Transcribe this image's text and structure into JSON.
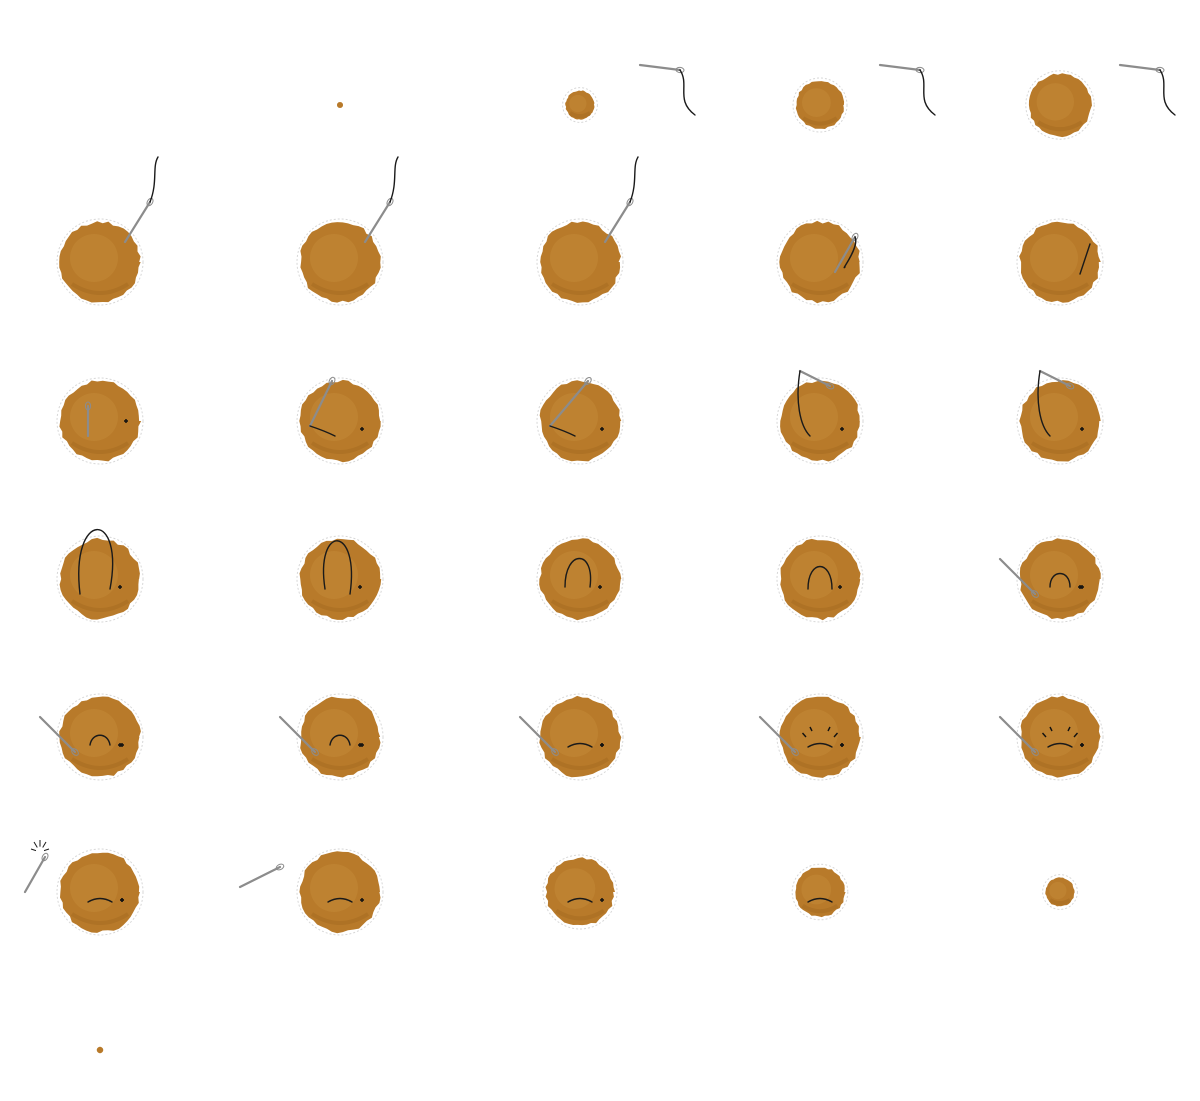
{
  "sprite_sheet": {
    "grid": {
      "columns": 5,
      "rows": 7
    },
    "frame_count": 31,
    "colors": {
      "background": "#ffffff",
      "cookie_fill": "#b87a2a",
      "cookie_light": "#c9913f",
      "cookie_dark": "#a3691f",
      "outline": "#d7d7d7",
      "needle": "#8c8c8c",
      "thread": "#1a1a1a",
      "stitch": "#111111"
    },
    "frames": [
      {
        "state": "empty"
      },
      {
        "state": "dot",
        "size_level": 0.06
      },
      {
        "state": "growing",
        "size_level": 0.36,
        "needle": "floating"
      },
      {
        "state": "growing",
        "size_level": 0.6,
        "needle": "floating"
      },
      {
        "state": "growing",
        "size_level": 0.78,
        "needle": "floating"
      },
      {
        "state": "full",
        "needle": "descending"
      },
      {
        "state": "full",
        "needle": "descending"
      },
      {
        "state": "full",
        "needle": "descending"
      },
      {
        "state": "full",
        "needle": "entering"
      },
      {
        "state": "full",
        "needle": "inside"
      },
      {
        "state": "full",
        "needle": "piercing"
      },
      {
        "state": "full",
        "needle": "pulling"
      },
      {
        "state": "full",
        "needle": "pulling"
      },
      {
        "state": "full",
        "needle": "looping"
      },
      {
        "state": "full",
        "needle": "looping"
      },
      {
        "state": "full",
        "thread": "big-loop"
      },
      {
        "state": "full",
        "thread": "loop"
      },
      {
        "state": "full",
        "thread": "loop-tightening"
      },
      {
        "state": "full",
        "thread": "arch"
      },
      {
        "state": "full",
        "thread": "small-arch",
        "needle": "exiting"
      },
      {
        "state": "full",
        "thread": "mouth-arch",
        "needle": "exiting"
      },
      {
        "state": "full",
        "thread": "mouth-arch",
        "needle": "exiting"
      },
      {
        "state": "full",
        "thread": "frown",
        "needle": "exiting"
      },
      {
        "state": "full",
        "thread": "frown-sparks",
        "needle": "exiting"
      },
      {
        "state": "full",
        "thread": "frown-sparks",
        "needle": "exiting"
      },
      {
        "state": "full",
        "thread": "frown",
        "needle": "snapping"
      },
      {
        "state": "full",
        "thread": "frown",
        "needle": "flying"
      },
      {
        "state": "shrinking",
        "size_level": 0.85,
        "thread": "frown"
      },
      {
        "state": "shrinking",
        "size_level": 0.62,
        "thread": "frown"
      },
      {
        "state": "shrinking",
        "size_level": 0.36
      },
      {
        "state": "dot",
        "size_level": 0.08
      }
    ]
  }
}
